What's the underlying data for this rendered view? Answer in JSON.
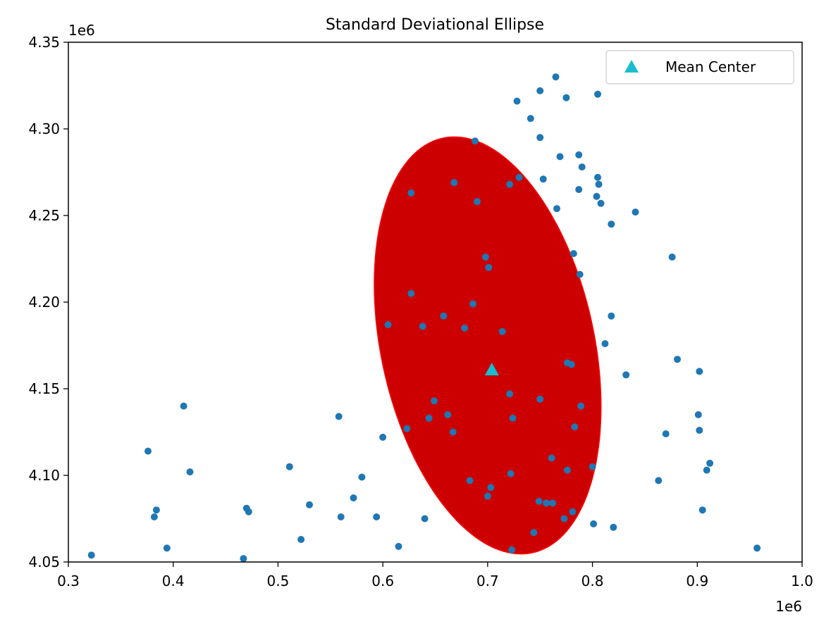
{
  "chart_data": {
    "type": "scatter",
    "title": "Standard Deviational Ellipse",
    "xlabel": "",
    "ylabel": "",
    "xlim": [
      0.3,
      1.0
    ],
    "ylim": [
      4.05,
      4.35
    ],
    "x_offset_label": "1e6",
    "y_offset_label": "1e6",
    "x_ticks": [
      "0.3",
      "0.4",
      "0.5",
      "0.6",
      "0.7",
      "0.8",
      "0.9",
      "1.0"
    ],
    "y_ticks": [
      "4.05",
      "4.10",
      "4.15",
      "4.20",
      "4.25",
      "4.30",
      "4.35"
    ],
    "grid": false,
    "legend": {
      "placement": "top-right",
      "entries": [
        "Mean Center"
      ]
    },
    "colors": {
      "points": "#1f77b4",
      "ellipse": "#cc0000",
      "ellipse_edge": "#ff0000",
      "mean_center": "#17becf"
    },
    "ellipse": {
      "center": [
        0.7,
        4.175
      ],
      "semi_axis_1": 0.131,
      "semi_axis_2": 0.095,
      "rotation_deg": -55
    },
    "mean_center": {
      "name": "Mean Center",
      "x": 0.704,
      "y": 4.161
    },
    "series": [
      {
        "points": [
          [
            0.765,
            4.33
          ],
          [
            0.75,
            4.322
          ],
          [
            0.775,
            4.318
          ],
          [
            0.805,
            4.32
          ],
          [
            0.728,
            4.316
          ],
          [
            0.741,
            4.306
          ],
          [
            0.75,
            4.295
          ],
          [
            0.688,
            4.293
          ],
          [
            0.769,
            4.284
          ],
          [
            0.787,
            4.285
          ],
          [
            0.79,
            4.278
          ],
          [
            0.805,
            4.272
          ],
          [
            0.753,
            4.271
          ],
          [
            0.73,
            4.272
          ],
          [
            0.721,
            4.268
          ],
          [
            0.668,
            4.269
          ],
          [
            0.806,
            4.268
          ],
          [
            0.787,
            4.265
          ],
          [
            0.627,
            4.263
          ],
          [
            0.804,
            4.261
          ],
          [
            0.808,
            4.257
          ],
          [
            0.69,
            4.258
          ],
          [
            0.766,
            4.254
          ],
          [
            0.841,
            4.252
          ],
          [
            0.818,
            4.245
          ],
          [
            0.876,
            4.226
          ],
          [
            0.782,
            4.228
          ],
          [
            0.698,
            4.226
          ],
          [
            0.701,
            4.22
          ],
          [
            0.788,
            4.216
          ],
          [
            0.627,
            4.205
          ],
          [
            0.686,
            4.199
          ],
          [
            0.658,
            4.192
          ],
          [
            0.818,
            4.192
          ],
          [
            0.605,
            4.187
          ],
          [
            0.638,
            4.186
          ],
          [
            0.678,
            4.185
          ],
          [
            0.714,
            4.183
          ],
          [
            0.812,
            4.176
          ],
          [
            0.881,
            4.167
          ],
          [
            0.776,
            4.165
          ],
          [
            0.78,
            4.164
          ],
          [
            0.902,
            4.16
          ],
          [
            0.832,
            4.158
          ],
          [
            0.721,
            4.147
          ],
          [
            0.75,
            4.144
          ],
          [
            0.649,
            4.143
          ],
          [
            0.41,
            4.14
          ],
          [
            0.789,
            4.14
          ],
          [
            0.662,
            4.135
          ],
          [
            0.558,
            4.134
          ],
          [
            0.901,
            4.135
          ],
          [
            0.724,
            4.133
          ],
          [
            0.644,
            4.133
          ],
          [
            0.783,
            4.128
          ],
          [
            0.623,
            4.127
          ],
          [
            0.902,
            4.126
          ],
          [
            0.667,
            4.125
          ],
          [
            0.87,
            4.124
          ],
          [
            0.6,
            4.122
          ],
          [
            0.376,
            4.114
          ],
          [
            0.761,
            4.11
          ],
          [
            0.912,
            4.107
          ],
          [
            0.511,
            4.105
          ],
          [
            0.8,
            4.105
          ],
          [
            0.776,
            4.103
          ],
          [
            0.909,
            4.103
          ],
          [
            0.416,
            4.102
          ],
          [
            0.722,
            4.101
          ],
          [
            0.58,
            4.099
          ],
          [
            0.683,
            4.097
          ],
          [
            0.863,
            4.097
          ],
          [
            0.703,
            4.093
          ],
          [
            0.7,
            4.088
          ],
          [
            0.572,
            4.087
          ],
          [
            0.749,
            4.085
          ],
          [
            0.756,
            4.084
          ],
          [
            0.762,
            4.084
          ],
          [
            0.53,
            4.083
          ],
          [
            0.47,
            4.081
          ],
          [
            0.472,
            4.079
          ],
          [
            0.384,
            4.08
          ],
          [
            0.781,
            4.079
          ],
          [
            0.905,
            4.08
          ],
          [
            0.382,
            4.076
          ],
          [
            0.56,
            4.076
          ],
          [
            0.594,
            4.076
          ],
          [
            0.64,
            4.075
          ],
          [
            0.773,
            4.075
          ],
          [
            0.801,
            4.072
          ],
          [
            0.82,
            4.07
          ],
          [
            0.744,
            4.067
          ],
          [
            0.522,
            4.063
          ],
          [
            0.615,
            4.059
          ],
          [
            0.394,
            4.058
          ],
          [
            0.957,
            4.058
          ],
          [
            0.723,
            4.057
          ],
          [
            0.322,
            4.054
          ],
          [
            0.467,
            4.052
          ]
        ]
      }
    ]
  }
}
